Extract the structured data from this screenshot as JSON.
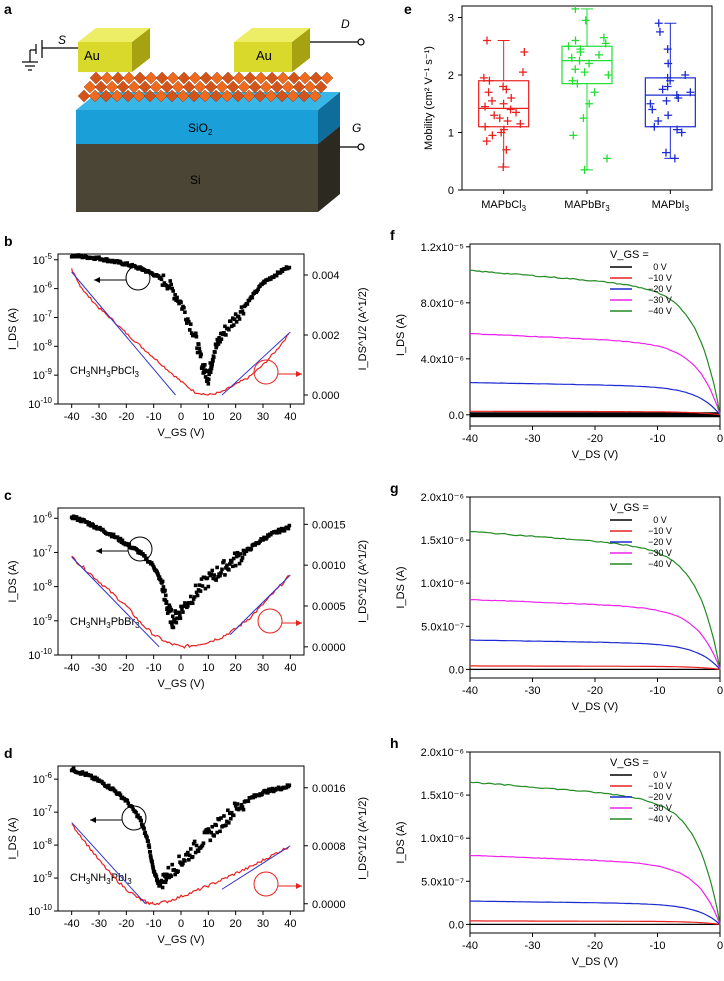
{
  "panels": {
    "a": {
      "label": "a",
      "terminals": {
        "source": "S",
        "drain": "D",
        "gate": "G"
      },
      "layers": {
        "electrode_left": "Au",
        "electrode_right": "Au",
        "oxide": "SiO",
        "oxide_sub": "2",
        "substrate": "Si"
      },
      "colors": {
        "au": "#d9d92b",
        "perovskite": "#f06a1e",
        "oxide": "#1a9fd8",
        "si": "#4a4535"
      }
    },
    "e": {
      "label": "e",
      "chart_data": {
        "type": "box",
        "ylabel": "Mobility (cm² V⁻¹ s⁻¹)",
        "ylim": [
          0,
          3.2
        ],
        "yticks": [
          0,
          1,
          2,
          3
        ],
        "categories": [
          "MAPbCl3",
          "MAPbBr3",
          "MAPbI3"
        ],
        "category_labels": [
          {
            "main": "MAPbCl",
            "sub": "3"
          },
          {
            "main": "MAPbBr",
            "sub": "3"
          },
          {
            "main": "MAPbI",
            "sub": "3"
          }
        ],
        "colors": [
          "#e8211f",
          "#22dd33",
          "#1c2bd0"
        ],
        "boxes": [
          {
            "min": 0.4,
            "q1": 1.1,
            "median": 1.42,
            "q3": 1.9,
            "max": 2.6,
            "points": [
              0.4,
              0.7,
              0.85,
              0.95,
              1.0,
              1.05,
              1.1,
              1.15,
              1.2,
              1.25,
              1.3,
              1.35,
              1.4,
              1.45,
              1.5,
              1.55,
              1.6,
              1.7,
              1.75,
              1.8,
              1.9,
              1.95,
              2.05,
              2.4,
              2.6
            ]
          },
          {
            "min": 0.35,
            "q1": 1.85,
            "median": 2.25,
            "q3": 2.5,
            "max": 3.15,
            "points": [
              0.35,
              0.55,
              0.95,
              1.25,
              1.5,
              1.7,
              1.85,
              1.9,
              2.0,
              2.05,
              2.1,
              2.2,
              2.25,
              2.3,
              2.35,
              2.4,
              2.45,
              2.5,
              2.55,
              2.6,
              2.65,
              2.95,
              3.15
            ]
          },
          {
            "min": 0.55,
            "q1": 1.1,
            "median": 1.65,
            "q3": 1.95,
            "max": 2.9,
            "points": [
              0.55,
              0.65,
              1.0,
              1.05,
              1.1,
              1.2,
              1.3,
              1.4,
              1.5,
              1.55,
              1.6,
              1.65,
              1.7,
              1.75,
              1.8,
              1.9,
              1.95,
              2.0,
              2.2,
              2.45,
              2.75,
              2.9
            ]
          }
        ]
      }
    },
    "transfer": [
      {
        "label": "b",
        "material_main": "CH",
        "material_parts": [
          "3",
          "NH",
          "3",
          "PbCl",
          "3"
        ],
        "chart_data": {
          "type": "line",
          "xlabel": "V_GS (V)",
          "xlim": [
            -45,
            45
          ],
          "xticks": [
            -40,
            -30,
            -20,
            -10,
            0,
            10,
            20,
            30,
            40
          ],
          "left_axis": {
            "label": "I_DS (A)",
            "scale": "log",
            "ylim_exp": [
              -10,
              -4.8
            ],
            "tick_exps": [
              -10,
              -9,
              -8,
              -7,
              -6,
              -5
            ]
          },
          "right_axis": {
            "label": "I_DS^1/2 (A^1/2)",
            "ylim": [
              -0.0003,
              0.0047
            ],
            "ticks": [
              "0.000",
              "0.002",
              "0.004"
            ],
            "tick_values": [
              0,
              0.002,
              0.004
            ]
          },
          "log_series_exp": {
            "name": "I_DS",
            "x": [
              -40,
              -35,
              -30,
              -25,
              -20,
              -15,
              -10,
              -5,
              0,
              5,
              8,
              10,
              12,
              15,
              20,
              25,
              30,
              35,
              40
            ],
            "y_exp": [
              -4.85,
              -4.9,
              -4.95,
              -5.05,
              -5.15,
              -5.3,
              -5.5,
              -5.8,
              -6.5,
              -7.6,
              -8.7,
              -9.1,
              -8.2,
              -7.6,
              -7.0,
              -6.4,
              -5.8,
              -5.5,
              -5.2
            ]
          },
          "sqrt_series": {
            "name": "I_DS^1/2",
            "x": [
              -40,
              -38,
              -35,
              -30,
              -25,
              -20,
              -15,
              -10,
              -5,
              0,
              5,
              10,
              15,
              20,
              25,
              30,
              35,
              40
            ],
            "y": [
              0.0042,
              0.0038,
              0.0034,
              0.0029,
              0.0025,
              0.00205,
              0.00165,
              0.00125,
              0.00085,
              0.00045,
              0.0001,
              0.0,
              0.0001,
              0.00035,
              0.0006,
              0.001,
              0.0015,
              0.0021
            ]
          },
          "fits": [
            {
              "x": [
                -40,
                -2
              ],
              "y": [
                0.0041,
                0.0
              ]
            },
            {
              "x": [
                15,
                40
              ],
              "y": [
                0.0,
                0.0021
              ]
            }
          ],
          "colors": {
            "log": "#000000",
            "sqrt": "#e8211f",
            "fit": "#3333cc",
            "circle": "#e8211f"
          }
        }
      },
      {
        "label": "c",
        "material_main": "CH",
        "material_parts": [
          "3",
          "NH",
          "3",
          "PbBr",
          "3"
        ],
        "chart_data": {
          "type": "line",
          "xlabel": "V_GS (V)",
          "xlim": [
            -45,
            45
          ],
          "xticks": [
            -40,
            -30,
            -20,
            -10,
            0,
            10,
            20,
            30,
            40
          ],
          "left_axis": {
            "label": "I_DS (A)",
            "scale": "log",
            "ylim_exp": [
              -10,
              -5.7
            ],
            "tick_exps": [
              -10,
              -9,
              -8,
              -7,
              -6
            ]
          },
          "right_axis": {
            "label": "I_DS^1/2 (A^1/2)",
            "ylim": [
              -0.0001,
              0.0017
            ],
            "ticks": [
              "0.0000",
              "0.0005",
              "0.0010",
              "0.0015"
            ],
            "tick_values": [
              0,
              0.0005,
              0.001,
              0.0015
            ]
          },
          "log_series_exp": {
            "name": "I_DS",
            "x": [
              -40,
              -35,
              -30,
              -25,
              -20,
              -15,
              -10,
              -7,
              -5,
              -3,
              0,
              5,
              10,
              15,
              20,
              25,
              30,
              35,
              40
            ],
            "y_exp": [
              -5.95,
              -6.1,
              -6.3,
              -6.5,
              -6.75,
              -7.0,
              -7.4,
              -7.9,
              -8.6,
              -9.0,
              -8.7,
              -8.2,
              -7.8,
              -7.5,
              -7.2,
              -6.9,
              -6.6,
              -6.4,
              -6.25
            ]
          },
          "sqrt_series": {
            "name": "I_DS^1/2",
            "x": [
              -40,
              -35,
              -30,
              -25,
              -20,
              -15,
              -10,
              -5,
              0,
              5,
              10,
              15,
              20,
              25,
              30,
              35,
              40
            ],
            "y": [
              0.0011,
              0.00095,
              0.0008,
              0.00065,
              0.0005,
              0.0003,
              0.00015,
              5e-05,
              0.0,
              2e-05,
              6e-05,
              0.00012,
              0.00022,
              0.00035,
              0.00052,
              0.0007,
              0.00088
            ]
          },
          "fits": [
            {
              "x": [
                -40,
                -8
              ],
              "y": [
                0.0011,
                0.0
              ]
            },
            {
              "x": [
                18,
                40
              ],
              "y": [
                0.00015,
                0.00088
              ]
            }
          ],
          "colors": {
            "log": "#000000",
            "sqrt": "#e8211f",
            "fit": "#3333cc",
            "circle": "#e8211f"
          }
        }
      },
      {
        "label": "d",
        "material_main": "CH",
        "material_parts": [
          "3",
          "NH",
          "3",
          "PbI",
          "3"
        ],
        "chart_data": {
          "type": "line",
          "xlabel": "V_GS (V)",
          "xlim": [
            -45,
            45
          ],
          "xticks": [
            -40,
            -30,
            -20,
            -10,
            0,
            10,
            20,
            30,
            40
          ],
          "left_axis": {
            "label": "I_DS (A)",
            "scale": "log",
            "ylim_exp": [
              -10,
              -5.6
            ],
            "tick_exps": [
              -10,
              -9,
              -8,
              -7,
              -6
            ]
          },
          "right_axis": {
            "label": "I_DS^1/2 (A^1/2)",
            "ylim": [
              -0.0001,
              0.0019
            ],
            "ticks": [
              "0.0000",
              "0.0008",
              "0.0016"
            ],
            "tick_values": [
              0,
              0.0008,
              0.0016
            ]
          },
          "log_series_exp": {
            "name": "I_DS",
            "x": [
              -40,
              -35,
              -30,
              -25,
              -20,
              -15,
              -12,
              -10,
              -8,
              -5,
              0,
              5,
              10,
              15,
              20,
              25,
              30,
              35,
              40
            ],
            "y_exp": [
              -5.7,
              -5.85,
              -6.05,
              -6.3,
              -6.65,
              -7.2,
              -7.9,
              -8.8,
              -9.2,
              -8.9,
              -8.5,
              -8.1,
              -7.7,
              -7.3,
              -6.9,
              -6.6,
              -6.4,
              -6.3,
              -6.2
            ]
          },
          "sqrt_series": {
            "name": "I_DS^1/2",
            "x": [
              -40,
              -35,
              -30,
              -25,
              -20,
              -15,
              -12,
              -10,
              -5,
              0,
              5,
              10,
              15,
              20,
              25,
              30,
              35,
              40
            ],
            "y": [
              0.0011,
              0.00085,
              0.0006,
              0.00038,
              0.0002,
              6e-05,
              1e-05,
              0.0,
              3e-05,
              0.0001,
              0.00017,
              0.00025,
              0.00033,
              0.00042,
              0.0005,
              0.0006,
              0.0007,
              0.0008
            ]
          },
          "fits": [
            {
              "x": [
                -40,
                -13
              ],
              "y": [
                0.00112,
                0.0
              ]
            },
            {
              "x": [
                15,
                40
              ],
              "y": [
                0.0002,
                0.0008
              ]
            }
          ],
          "colors": {
            "log": "#000000",
            "sqrt": "#e8211f",
            "fit": "#3333cc",
            "circle": "#e8211f"
          }
        }
      }
    ],
    "output": [
      {
        "label": "f",
        "chart_data": {
          "type": "line",
          "xlabel": "V_DS (V)",
          "xlim": [
            -40,
            0
          ],
          "xticks": [
            -40,
            -30,
            -20,
            -10,
            0
          ],
          "ylabel": "I_DS (A)",
          "ylim": [
            -8e-07,
            1.22e-05
          ],
          "ytick_values": [
            0,
            4e-06,
            8e-06,
            1.2e-05
          ],
          "ytick_labels": [
            "0.0",
            "4.0x10⁻⁶",
            "8.0x10⁻⁶",
            "1.2x10⁻⁵"
          ],
          "legend_title": "V_GS =",
          "series": [
            {
              "name": "0 V",
              "color": "#000000",
              "sat": 0.0,
              "bold": true
            },
            {
              "name": "−10 V",
              "color": "#e8211f",
              "sat": 2.5e-07
            },
            {
              "name": "−20 V",
              "color": "#1c2bd0",
              "sat": 2.3e-06
            },
            {
              "name": "−30 V",
              "color": "#ee22ee",
              "sat": 5.8e-06
            },
            {
              "name": "−40 V",
              "color": "#228b22",
              "sat": 1.03e-05
            }
          ]
        }
      },
      {
        "label": "g",
        "chart_data": {
          "type": "line",
          "xlabel": "V_DS (V)",
          "xlim": [
            -40,
            0
          ],
          "xticks": [
            -40,
            -30,
            -20,
            -10,
            0
          ],
          "ylabel": "I_DS (A)",
          "ylim": [
            -1e-07,
            2e-06
          ],
          "ytick_values": [
            0,
            5e-07,
            1e-06,
            1.5e-06,
            2e-06
          ],
          "ytick_labels": [
            "0.0",
            "5.0x10⁻⁷",
            "1.0x10⁻⁶",
            "1.5x10⁻⁶",
            "2.0x10⁻⁶"
          ],
          "legend_title": "V_GS =",
          "series": [
            {
              "name": "0 V",
              "color": "#000000",
              "sat": 0.0
            },
            {
              "name": "−10 V",
              "color": "#e8211f",
              "sat": 4e-08
            },
            {
              "name": "−20 V",
              "color": "#1c2bd0",
              "sat": 3.4e-07
            },
            {
              "name": "−30 V",
              "color": "#ee22ee",
              "sat": 8.1e-07
            },
            {
              "name": "−40 V",
              "color": "#228b22",
              "sat": 1.6e-06
            }
          ]
        }
      },
      {
        "label": "h",
        "chart_data": {
          "type": "line",
          "xlabel": "V_DS (V)",
          "xlim": [
            -40,
            0
          ],
          "xticks": [
            -40,
            -30,
            -20,
            -10,
            0
          ],
          "ylabel": "I_DS (A)",
          "ylim": [
            -1e-07,
            2e-06
          ],
          "ytick_values": [
            0,
            5e-07,
            1e-06,
            1.5e-06,
            2e-06
          ],
          "ytick_labels": [
            "0.0",
            "5.0x10⁻⁷",
            "1.0x10⁻⁶",
            "1.5x10⁻⁶",
            "2.0x10⁻⁶"
          ],
          "legend_title": "V_GS =",
          "series": [
            {
              "name": "0 V",
              "color": "#000000",
              "sat": 0.0
            },
            {
              "name": "−10 V",
              "color": "#e8211f",
              "sat": 4e-08
            },
            {
              "name": "−20 V",
              "color": "#1c2bd0",
              "sat": 2.7e-07
            },
            {
              "name": "−30 V",
              "color": "#ee22ee",
              "sat": 8e-07
            },
            {
              "name": "−40 V",
              "color": "#228b22",
              "sat": 1.65e-06
            }
          ]
        }
      }
    ]
  }
}
